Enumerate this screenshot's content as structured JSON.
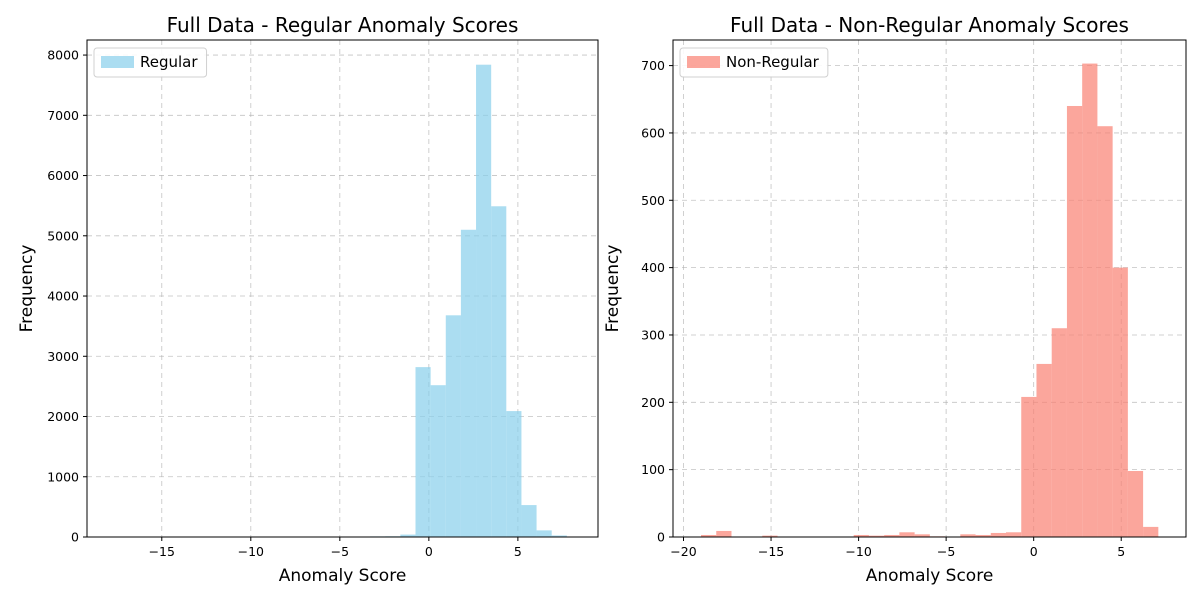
{
  "chart_data": [
    {
      "type": "bar",
      "title": "Full Data - Regular Anomaly Scores",
      "xlabel": "Anomaly Score",
      "ylabel": "Frequency",
      "color": "#87ceeb",
      "xlim": [
        -19.2,
        9.5
      ],
      "ylim": [
        0,
        8250
      ],
      "xticks": [
        -15,
        -10,
        -5,
        0,
        5
      ],
      "yticks": [
        0,
        1000,
        2000,
        3000,
        4000,
        5000,
        6000,
        7000,
        8000
      ],
      "grid": true,
      "legend": {
        "position": "top-left",
        "entries": [
          "Regular"
        ]
      },
      "bins": [
        {
          "x0": -18.0,
          "x1": -17.15,
          "value": 0
        },
        {
          "x0": -10.5,
          "x1": -9.65,
          "value": 8
        },
        {
          "x0": -6.7,
          "x1": -5.85,
          "value": 6
        },
        {
          "x0": -5.85,
          "x1": -5.0,
          "value": 8
        },
        {
          "x0": -5.0,
          "x1": -4.15,
          "value": 5
        },
        {
          "x0": -4.15,
          "x1": -3.3,
          "value": 6
        },
        {
          "x0": -3.3,
          "x1": -2.45,
          "value": 10
        },
        {
          "x0": -2.45,
          "x1": -1.6,
          "value": 12
        },
        {
          "x0": -1.6,
          "x1": -0.75,
          "value": 40
        },
        {
          "x0": -0.75,
          "x1": 0.1,
          "value": 2820
        },
        {
          "x0": 0.1,
          "x1": 0.95,
          "value": 2520
        },
        {
          "x0": 0.95,
          "x1": 1.8,
          "value": 3680
        },
        {
          "x0": 1.8,
          "x1": 2.65,
          "value": 5100
        },
        {
          "x0": 2.65,
          "x1": 3.5,
          "value": 7840
        },
        {
          "x0": 3.5,
          "x1": 4.35,
          "value": 5490
        },
        {
          "x0": 4.35,
          "x1": 5.2,
          "value": 2090
        },
        {
          "x0": 5.2,
          "x1": 6.05,
          "value": 530
        },
        {
          "x0": 6.05,
          "x1": 6.9,
          "value": 110
        },
        {
          "x0": 6.9,
          "x1": 7.75,
          "value": 25
        }
      ]
    },
    {
      "type": "bar",
      "title": "Full Data - Non-Regular Anomaly Scores",
      "xlabel": "Anomaly Score",
      "ylabel": "Frequency",
      "color": "#fa8072",
      "xlim": [
        -20.6,
        8.7
      ],
      "ylim": [
        0,
        738
      ],
      "xticks": [
        -20,
        -15,
        -10,
        -5,
        0,
        5
      ],
      "yticks": [
        0,
        100,
        200,
        300,
        400,
        500,
        600,
        700
      ],
      "grid": true,
      "legend": {
        "position": "top-left",
        "entries": [
          "Non-Regular"
        ]
      },
      "bins": [
        {
          "x0": -19.0,
          "x1": -18.13,
          "value": 3
        },
        {
          "x0": -18.13,
          "x1": -17.26,
          "value": 9
        },
        {
          "x0": -15.5,
          "x1": -14.63,
          "value": 2
        },
        {
          "x0": -10.28,
          "x1": -9.41,
          "value": 3
        },
        {
          "x0": -9.41,
          "x1": -8.54,
          "value": 2
        },
        {
          "x0": -8.54,
          "x1": -7.67,
          "value": 3
        },
        {
          "x0": -7.67,
          "x1": -6.8,
          "value": 7
        },
        {
          "x0": -6.8,
          "x1": -5.93,
          "value": 4
        },
        {
          "x0": -5.93,
          "x1": -5.06,
          "value": 1
        },
        {
          "x0": -4.19,
          "x1": -3.32,
          "value": 4
        },
        {
          "x0": -3.32,
          "x1": -2.45,
          "value": 3
        },
        {
          "x0": -2.45,
          "x1": -1.58,
          "value": 6
        },
        {
          "x0": -1.58,
          "x1": -0.71,
          "value": 7
        },
        {
          "x0": -0.71,
          "x1": 0.16,
          "value": 208
        },
        {
          "x0": 0.16,
          "x1": 1.03,
          "value": 257
        },
        {
          "x0": 1.03,
          "x1": 1.9,
          "value": 310
        },
        {
          "x0": 1.9,
          "x1": 2.77,
          "value": 640
        },
        {
          "x0": 2.77,
          "x1": 3.64,
          "value": 703
        },
        {
          "x0": 3.64,
          "x1": 4.51,
          "value": 610
        },
        {
          "x0": 4.51,
          "x1": 5.38,
          "value": 400
        },
        {
          "x0": 5.38,
          "x1": 6.25,
          "value": 98
        },
        {
          "x0": 6.25,
          "x1": 7.12,
          "value": 15
        }
      ]
    }
  ]
}
